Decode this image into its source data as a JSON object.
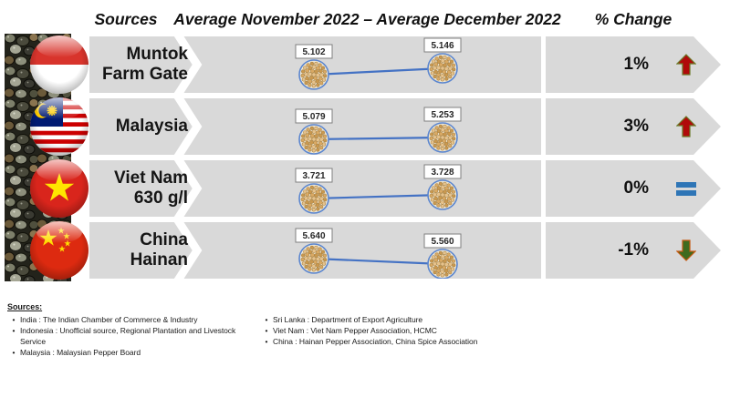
{
  "header": {
    "sources_label": "Sources",
    "period_label": "Average November 2022 – Average December 2022",
    "change_label": "% Change"
  },
  "rows": [
    {
      "flag": "indonesia-flag",
      "label_line1": "Muntok",
      "label_line2": "Farm Gate",
      "nov": "5.102",
      "dec": "5.146",
      "change": "1%",
      "trend": "up"
    },
    {
      "flag": "malaysia-flag",
      "label_line1": "Malaysia",
      "label_line2": "",
      "nov": "5.079",
      "dec": "5.253",
      "change": "3%",
      "trend": "up"
    },
    {
      "flag": "vietnam-flag",
      "label_line1": "Viet Nam",
      "label_line2": "630 g/l",
      "nov": "3.721",
      "dec": "3.728",
      "change": "0%",
      "trend": "flat"
    },
    {
      "flag": "china-flag",
      "label_line1": "China",
      "label_line2": "Hainan",
      "nov": "5.640",
      "dec": "5.560",
      "change": "-1%",
      "trend": "down"
    }
  ],
  "chart_data": {
    "type": "line",
    "title": "Average November 2022 – Average December 2022",
    "categories": [
      "Average November 2022",
      "Average December 2022"
    ],
    "series": [
      {
        "name": "Muntok Farm Gate",
        "values": [
          5.102,
          5.146
        ],
        "pct_change": "1%"
      },
      {
        "name": "Malaysia",
        "values": [
          5.079,
          5.253
        ],
        "pct_change": "3%"
      },
      {
        "name": "Viet Nam 630 g/l",
        "values": [
          3.721,
          3.728
        ],
        "pct_change": "0%"
      },
      {
        "name": "China Hainan",
        "values": [
          5.64,
          5.56
        ],
        "pct_change": "-1%"
      }
    ],
    "legend_position": "none",
    "grid": false,
    "marker_style": "peppercorn-cluster",
    "line_color": "#4472C4"
  },
  "footer": {
    "heading": "Sources:",
    "left_items": [
      "India : The Indian Chamber of Commerce & Industry",
      "Indonesia : Unofficial source, Regional Plantation and Livestock Service",
      "Malaysia : Malaysian Pepper Board"
    ],
    "right_items": [
      "Sri Lanka : Department of Export Agriculture",
      "Viet Nam : Viet Nam Pepper Association, HCMC",
      "China : Hainan Pepper Association, China Spice Association"
    ]
  },
  "colors": {
    "band_gray": "#D9D9D9",
    "line_blue": "#4472C4",
    "up_red": "#B00A0A",
    "down_green": "#3E6B1E",
    "equal_blue": "#2E75B6"
  }
}
